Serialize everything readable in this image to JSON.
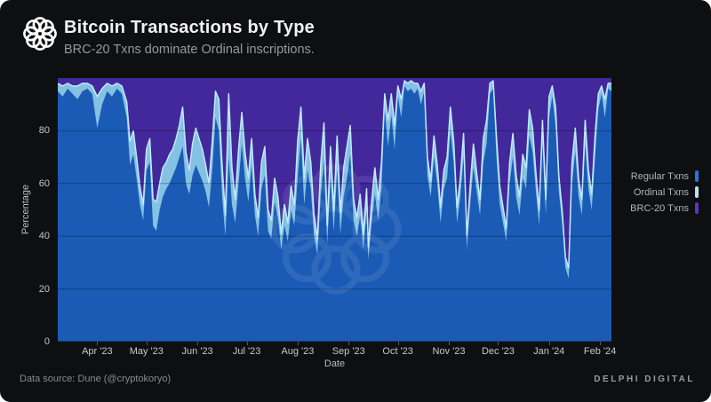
{
  "header": {
    "title": "Bitcoin Transactions by Type",
    "subtitle": "BRC-20 Txns dominate Ordinal inscriptions."
  },
  "footer": {
    "source": "Data source: Dune (@cryptokoryo)",
    "brand": "DELPHI DIGITAL"
  },
  "colors": {
    "background": "#0e0f11",
    "regular": "#1b5bb6",
    "ordinal": "#84c1e3",
    "ordinal_edge": "#bfeafb",
    "brc20": "#43289b",
    "legend_regular": "#2f6fe4",
    "legend_ordinal": "#b7e2f6",
    "legend_brc20": "#5c35c8",
    "gridline": "rgba(0,0,0,0.30)"
  },
  "legend": [
    {
      "label": "Regular Txns",
      "color_key": "legend_regular"
    },
    {
      "label": "Ordinal Txns",
      "color_key": "legend_ordinal"
    },
    {
      "label": "BRC-20 Txns",
      "color_key": "legend_brc20"
    }
  ],
  "chart_data": {
    "type": "area",
    "stacked": true,
    "normalized_percent": true,
    "xlabel": "Date",
    "ylabel": "Percentage",
    "ylim": [
      0,
      100
    ],
    "yticks": [
      0,
      20,
      40,
      60,
      80
    ],
    "grid": true,
    "legend_position": "right",
    "x_range": [
      "2023-03-08",
      "2024-02-08"
    ],
    "xticks": [
      {
        "label": "Apr '23",
        "date": "2023-04-01"
      },
      {
        "label": "May '23",
        "date": "2023-05-01"
      },
      {
        "label": "Jun '23",
        "date": "2023-06-01"
      },
      {
        "label": "Jul '23",
        "date": "2023-07-01"
      },
      {
        "label": "Aug '23",
        "date": "2023-08-01"
      },
      {
        "label": "Sep '23",
        "date": "2023-09-01"
      },
      {
        "label": "Oct '23",
        "date": "2023-10-01"
      },
      {
        "label": "Nov '23",
        "date": "2023-11-01"
      },
      {
        "label": "Dec '23",
        "date": "2023-12-01"
      },
      {
        "label": "Jan '24",
        "date": "2024-01-01"
      },
      {
        "label": "Feb '24",
        "date": "2024-02-01"
      }
    ],
    "dates": [
      "2023-03-08",
      "2023-03-11",
      "2023-03-14",
      "2023-03-17",
      "2023-03-20",
      "2023-03-23",
      "2023-03-26",
      "2023-03-29",
      "2023-04-01",
      "2023-04-04",
      "2023-04-07",
      "2023-04-10",
      "2023-04-13",
      "2023-04-16",
      "2023-04-19",
      "2023-04-21",
      "2023-04-23",
      "2023-04-25",
      "2023-04-27",
      "2023-04-29",
      "2023-05-01",
      "2023-05-03",
      "2023-05-05",
      "2023-05-07",
      "2023-05-09",
      "2023-05-11",
      "2023-05-13",
      "2023-05-15",
      "2023-05-17",
      "2023-05-19",
      "2023-05-21",
      "2023-05-23",
      "2023-05-25",
      "2023-05-27",
      "2023-05-29",
      "2023-05-31",
      "2023-06-02",
      "2023-06-04",
      "2023-06-06",
      "2023-06-08",
      "2023-06-10",
      "2023-06-12",
      "2023-06-14",
      "2023-06-16",
      "2023-06-18",
      "2023-06-20",
      "2023-06-22",
      "2023-06-24",
      "2023-06-26",
      "2023-06-28",
      "2023-06-30",
      "2023-07-02",
      "2023-07-04",
      "2023-07-06",
      "2023-07-08",
      "2023-07-10",
      "2023-07-12",
      "2023-07-14",
      "2023-07-16",
      "2023-07-18",
      "2023-07-20",
      "2023-07-22",
      "2023-07-24",
      "2023-07-26",
      "2023-07-28",
      "2023-07-30",
      "2023-08-01",
      "2023-08-03",
      "2023-08-05",
      "2023-08-07",
      "2023-08-09",
      "2023-08-11",
      "2023-08-13",
      "2023-08-15",
      "2023-08-17",
      "2023-08-19",
      "2023-08-21",
      "2023-08-23",
      "2023-08-25",
      "2023-08-27",
      "2023-08-29",
      "2023-08-31",
      "2023-09-02",
      "2023-09-04",
      "2023-09-06",
      "2023-09-08",
      "2023-09-10",
      "2023-09-12",
      "2023-09-13",
      "2023-09-15",
      "2023-09-17",
      "2023-09-19",
      "2023-09-21",
      "2023-09-23",
      "2023-09-25",
      "2023-09-27",
      "2023-09-29",
      "2023-10-01",
      "2023-10-03",
      "2023-10-05",
      "2023-10-07",
      "2023-10-09",
      "2023-10-11",
      "2023-10-13",
      "2023-10-15",
      "2023-10-17",
      "2023-10-19",
      "2023-10-21",
      "2023-10-23",
      "2023-10-25",
      "2023-10-27",
      "2023-10-29",
      "2023-10-31",
      "2023-11-02",
      "2023-11-04",
      "2023-11-06",
      "2023-11-08",
      "2023-11-10",
      "2023-11-12",
      "2023-11-14",
      "2023-11-16",
      "2023-11-18",
      "2023-11-20",
      "2023-11-22",
      "2023-11-24",
      "2023-11-26",
      "2023-11-28",
      "2023-11-30",
      "2023-12-02",
      "2023-12-04",
      "2023-12-06",
      "2023-12-08",
      "2023-12-10",
      "2023-12-12",
      "2023-12-14",
      "2023-12-16",
      "2023-12-18",
      "2023-12-20",
      "2023-12-22",
      "2023-12-24",
      "2023-12-26",
      "2023-12-28",
      "2023-12-30",
      "2024-01-01",
      "2024-01-03",
      "2024-01-05",
      "2024-01-07",
      "2024-01-09",
      "2024-01-11",
      "2024-01-13",
      "2024-01-15",
      "2024-01-17",
      "2024-01-19",
      "2024-01-21",
      "2024-01-23",
      "2024-01-25",
      "2024-01-27",
      "2024-01-29",
      "2024-01-31",
      "2024-02-02",
      "2024-02-04",
      "2024-02-06",
      "2024-02-08"
    ],
    "series": [
      {
        "name": "Regular Txns",
        "values": [
          95,
          93,
          96,
          94,
          92,
          95,
          96,
          94,
          81,
          90,
          95,
          93,
          96,
          94,
          85,
          67,
          71,
          62,
          52,
          46,
          65,
          68,
          44,
          42,
          50,
          55,
          58,
          60,
          63,
          66,
          70,
          74,
          60,
          56,
          63,
          67,
          64,
          61,
          57,
          51,
          65,
          85,
          80,
          55,
          40,
          70,
          52,
          45,
          60,
          75,
          62,
          53,
          67,
          48,
          40,
          58,
          63,
          42,
          39,
          53,
          47,
          35,
          44,
          38,
          50,
          44,
          62,
          77,
          52,
          65,
          58,
          40,
          33,
          55,
          69,
          37,
          62,
          42,
          65,
          41,
          55,
          62,
          71,
          46,
          40,
          48,
          35,
          50,
          31,
          45,
          56,
          46,
          58,
          88,
          74,
          86,
          73,
          93,
          85,
          97,
          95,
          96,
          94,
          96,
          90,
          95,
          63,
          55,
          70,
          60,
          45,
          58,
          62,
          80,
          68,
          45,
          55,
          70,
          35,
          52,
          66,
          57,
          48,
          68,
          75,
          94,
          96,
          70,
          52,
          45,
          38,
          60,
          70,
          55,
          48,
          62,
          58,
          78,
          72,
          57,
          44,
          75,
          48,
          85,
          93,
          82,
          57,
          45,
          28,
          24,
          60,
          72,
          55,
          48,
          75,
          58,
          50,
          70,
          88,
          94,
          85,
          96,
          95
        ]
      },
      {
        "name": "Ordinal Txns",
        "values": [
          3,
          4,
          2,
          3,
          5,
          3,
          2,
          3,
          12,
          6,
          3,
          4,
          2,
          3,
          6,
          9,
          9,
          8,
          7,
          6,
          8,
          9,
          10,
          11,
          10,
          11,
          10,
          11,
          10,
          11,
          12,
          15,
          12,
          9,
          12,
          14,
          13,
          12,
          10,
          9,
          11,
          10,
          12,
          12,
          8,
          24,
          14,
          9,
          13,
          12,
          10,
          9,
          10,
          8,
          7,
          10,
          11,
          8,
          7,
          9,
          8,
          6,
          8,
          7,
          9,
          8,
          14,
          12,
          10,
          12,
          10,
          8,
          6,
          12,
          14,
          7,
          12,
          8,
          13,
          8,
          11,
          12,
          11,
          8,
          7,
          8,
          6,
          8,
          5,
          8,
          10,
          8,
          10,
          6,
          10,
          8,
          9,
          4,
          7,
          2,
          3,
          3,
          4,
          2,
          5,
          3,
          7,
          6,
          8,
          7,
          6,
          7,
          8,
          9,
          8,
          6,
          7,
          9,
          5,
          7,
          9,
          7,
          6,
          9,
          9,
          4,
          3,
          8,
          7,
          6,
          5,
          8,
          9,
          8,
          7,
          9,
          8,
          10,
          9,
          7,
          6,
          9,
          6,
          8,
          4,
          7,
          6,
          5,
          4,
          4,
          8,
          9,
          7,
          6,
          9,
          7,
          6,
          8,
          6,
          3,
          7,
          2,
          3
        ]
      },
      {
        "name": "BRC-20 Txns",
        "values": [
          2,
          3,
          2,
          3,
          3,
          2,
          2,
          3,
          7,
          4,
          2,
          3,
          2,
          3,
          9,
          24,
          20,
          30,
          41,
          48,
          27,
          23,
          46,
          47,
          40,
          34,
          32,
          29,
          27,
          23,
          18,
          11,
          28,
          35,
          25,
          19,
          23,
          27,
          33,
          40,
          24,
          5,
          8,
          33,
          52,
          6,
          34,
          46,
          27,
          13,
          28,
          38,
          23,
          44,
          53,
          32,
          26,
          50,
          54,
          38,
          45,
          59,
          48,
          55,
          41,
          48,
          24,
          11,
          38,
          23,
          32,
          52,
          61,
          33,
          17,
          56,
          26,
          50,
          22,
          51,
          34,
          26,
          18,
          46,
          53,
          44,
          59,
          42,
          64,
          47,
          34,
          46,
          32,
          6,
          16,
          6,
          18,
          3,
          8,
          1,
          2,
          1,
          2,
          2,
          5,
          2,
          30,
          39,
          22,
          33,
          49,
          35,
          30,
          11,
          24,
          49,
          38,
          21,
          60,
          41,
          25,
          36,
          46,
          23,
          16,
          2,
          1,
          22,
          41,
          49,
          57,
          32,
          21,
          37,
          45,
          29,
          34,
          12,
          19,
          36,
          50,
          16,
          46,
          7,
          3,
          11,
          37,
          50,
          68,
          72,
          32,
          19,
          38,
          46,
          16,
          35,
          44,
          22,
          6,
          3,
          8,
          2,
          2
        ]
      }
    ]
  }
}
